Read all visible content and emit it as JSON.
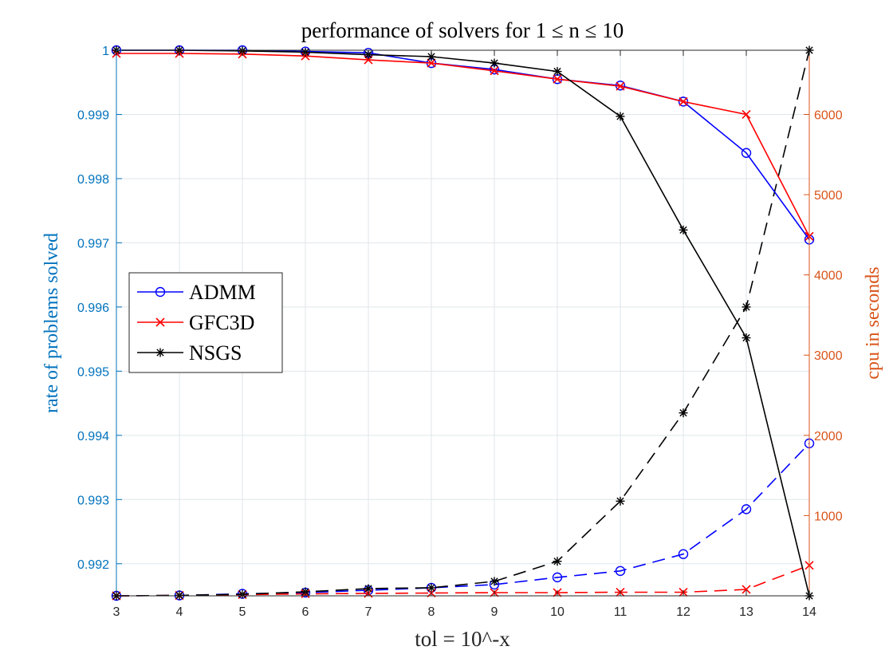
{
  "colors": {
    "left_axis": "#0072bd",
    "right_axis": "#d95319",
    "admm": "#0000ff",
    "gfc3d": "#ff0000",
    "nsgs": "#000000",
    "grid": "#dfe6ea"
  },
  "chart_data": {
    "type": "line",
    "title": "performance of solvers for 1 ≤ n ≤ 10",
    "xlabel": "tol = 10^-x",
    "ylabel_left": "rate of problems solved",
    "ylabel_right": "cpu in seconds",
    "x": [
      3,
      4,
      5,
      6,
      7,
      8,
      9,
      10,
      11,
      12,
      13,
      14
    ],
    "xlim": [
      3,
      14
    ],
    "ylim_left": [
      0.9915,
      1.0
    ],
    "ylim_right": [
      0,
      6800
    ],
    "y_left_ticks": [
      0.992,
      0.993,
      0.994,
      0.995,
      0.996,
      0.997,
      0.998,
      0.999,
      1
    ],
    "y_left_tick_labels": [
      "0.992",
      "0.993",
      "0.994",
      "0.995",
      "0.996",
      "0.997",
      "0.998",
      "0.999",
      "1"
    ],
    "y_right_ticks": [
      1000,
      2000,
      3000,
      4000,
      5000,
      6000
    ],
    "y_right_tick_labels": [
      "1000",
      "2000",
      "3000",
      "4000",
      "5000",
      "6000"
    ],
    "grid": true,
    "legend_placement": "left-middle",
    "series": [
      {
        "name": "ADMM",
        "axis": "left",
        "style": "solid",
        "marker": "circle",
        "color": "#0000ff",
        "values": [
          1.0,
          1.0,
          1.0,
          0.99998,
          0.99996,
          0.9998,
          0.9997,
          0.99955,
          0.99945,
          0.9992,
          0.9984,
          0.99705
        ]
      },
      {
        "name": "GFC3D",
        "axis": "left",
        "style": "solid",
        "marker": "x",
        "color": "#ff0000",
        "values": [
          0.99995,
          0.99995,
          0.99994,
          0.99991,
          0.99985,
          0.9998,
          0.99968,
          0.99955,
          0.99944,
          0.9992,
          0.999,
          0.9971
        ]
      },
      {
        "name": "NSGS",
        "axis": "left",
        "style": "solid",
        "marker": "star",
        "color": "#000000",
        "values": [
          1.0,
          1.0,
          0.99999,
          0.99997,
          0.99993,
          0.9999,
          0.9998,
          0.99967,
          0.99897,
          0.9972,
          0.99552,
          0.9915
        ]
      },
      {
        "name": "ADMM",
        "axis": "right",
        "style": "dashed",
        "marker": "circle",
        "color": "#0000ff",
        "values": [
          0,
          5,
          25,
          40,
          70,
          100,
          140,
          230,
          310,
          520,
          1080,
          1900
        ]
      },
      {
        "name": "GFC3D",
        "axis": "right",
        "style": "dashed",
        "marker": "x",
        "color": "#ff0000",
        "values": [
          0,
          5,
          15,
          25,
          30,
          35,
          40,
          40,
          45,
          45,
          80,
          380
        ]
      },
      {
        "name": "NSGS",
        "axis": "right",
        "style": "dashed",
        "marker": "star",
        "color": "#000000",
        "values": [
          0,
          5,
          20,
          50,
          90,
          100,
          180,
          430,
          1180,
          2280,
          3600,
          6800
        ]
      }
    ],
    "legend": [
      "ADMM",
      "GFC3D",
      "NSGS"
    ]
  }
}
